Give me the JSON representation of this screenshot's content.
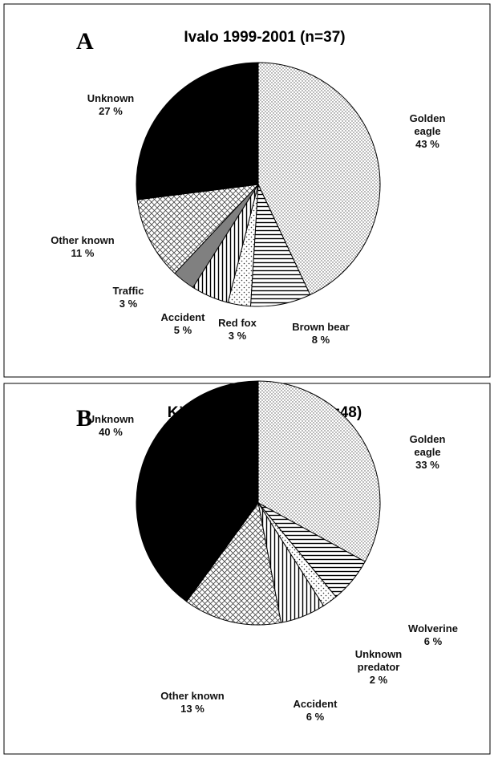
{
  "chart_data": [
    {
      "type": "pie",
      "panel": "A",
      "title": "Ivalo 1999-2001 (n=37)",
      "categories": [
        "Golden eagle",
        "Brown bear",
        "Red fox",
        "Accident",
        "Traffic",
        "Other known",
        "Unknown"
      ],
      "values": [
        43,
        8,
        3,
        5,
        3,
        11,
        27
      ],
      "value_labels": [
        "43 %",
        "8 %",
        "3 %",
        "5 %",
        "3 %",
        "11 %",
        "27 %"
      ],
      "fills": [
        "dots",
        "hlines",
        "sparse",
        "vlines",
        "gray",
        "crosshatch",
        "black"
      ]
    },
    {
      "type": "pie",
      "panel": "B",
      "title": "Käsivarsi 2002-2004 (n=48)",
      "categories": [
        "Golden eagle",
        "Wolverine",
        "Unknown predator",
        "Accident",
        "Other known",
        "Unknown"
      ],
      "values": [
        33,
        6,
        2,
        6,
        13,
        40
      ],
      "value_labels": [
        "33 %",
        "6 %",
        "2 %",
        "6 %",
        "13 %",
        "40 %"
      ],
      "fills": [
        "dots",
        "hlines",
        "sparse",
        "vlines",
        "crosshatch",
        "black"
      ]
    }
  ]
}
